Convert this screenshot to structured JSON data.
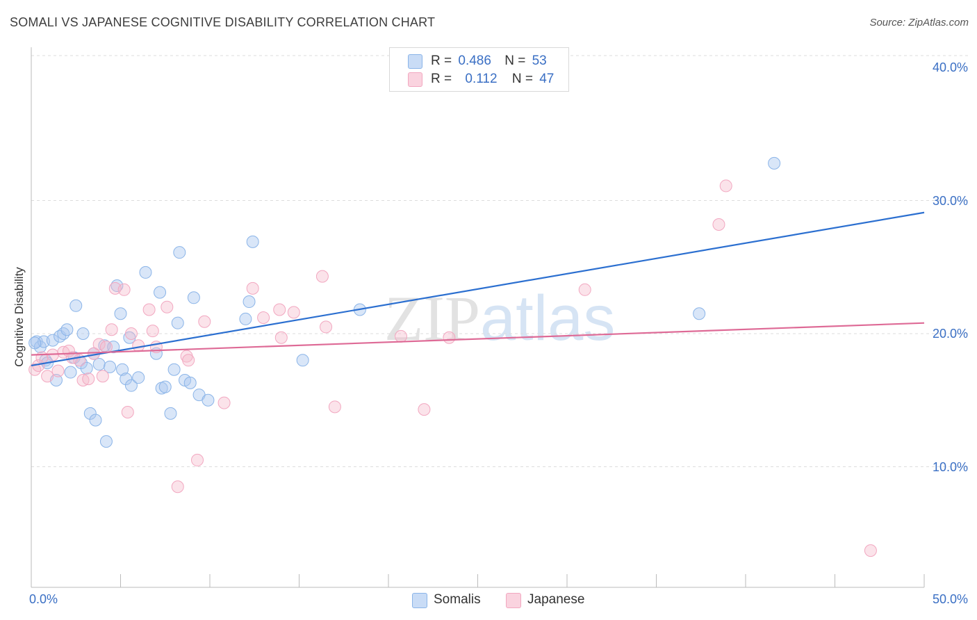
{
  "header": {
    "title": "SOMALI VS JAPANESE COGNITIVE DISABILITY CORRELATION CHART",
    "source": "Source: ZipAtlas.com"
  },
  "watermark": {
    "part1": "ZIP",
    "part2": "atlas"
  },
  "legend": {
    "rows": [
      {
        "r_label": "R =",
        "r_value": "0.486",
        "n_label": "N =",
        "n_value": "53",
        "color": "#aac8f0"
      },
      {
        "r_label": "R =",
        "r_value": "0.112",
        "n_label": "N =",
        "n_value": "47",
        "color": "#f6b8cb"
      }
    ]
  },
  "bottom_legend": [
    {
      "label": "Somalis",
      "color": "#aac8f0"
    },
    {
      "label": "Japanese",
      "color": "#f6b8cb"
    }
  ],
  "chart_data": {
    "type": "scatter",
    "title": "SOMALI VS JAPANESE COGNITIVE DISABILITY CORRELATION CHART",
    "xlabel": "",
    "ylabel": "Cognitive Disability",
    "xlim": [
      0,
      50
    ],
    "ylim": [
      0,
      40
    ],
    "x_tick_labels": [
      "0.0%",
      "50.0%"
    ],
    "y_ticks": [
      10,
      20,
      30,
      40
    ],
    "y_tick_labels": [
      "10.0%",
      "20.0%",
      "30.0%",
      "40.0%"
    ],
    "grid": "horizontal dashed",
    "legend_position": "top-center",
    "series": [
      {
        "name": "Somalis",
        "color": "#8ab4e8",
        "trend_color": "#2b6fd0",
        "trend": {
          "x": [
            0,
            50
          ],
          "y": [
            17.6,
            29.1
          ]
        },
        "points": [
          [
            0.3,
            19.4
          ],
          [
            0.5,
            19.0
          ],
          [
            0.7,
            19.4
          ],
          [
            0.8,
            18.0
          ],
          [
            0.9,
            17.8
          ],
          [
            1.2,
            19.5
          ],
          [
            1.4,
            16.5
          ],
          [
            1.6,
            19.8
          ],
          [
            1.8,
            20.0
          ],
          [
            2.0,
            20.3
          ],
          [
            2.2,
            17.1
          ],
          [
            2.4,
            18.2
          ],
          [
            2.5,
            22.1
          ],
          [
            2.8,
            17.8
          ],
          [
            2.9,
            20.0
          ],
          [
            3.1,
            17.4
          ],
          [
            3.3,
            14.0
          ],
          [
            3.5,
            18.5
          ],
          [
            3.6,
            13.5
          ],
          [
            3.8,
            17.7
          ],
          [
            4.1,
            19.1
          ],
          [
            4.2,
            11.9
          ],
          [
            4.4,
            17.5
          ],
          [
            4.6,
            19.0
          ],
          [
            4.8,
            23.6
          ],
          [
            5.0,
            21.5
          ],
          [
            5.1,
            17.3
          ],
          [
            5.3,
            16.6
          ],
          [
            5.5,
            19.7
          ],
          [
            5.6,
            16.1
          ],
          [
            6.0,
            16.7
          ],
          [
            6.4,
            24.6
          ],
          [
            7.0,
            18.5
          ],
          [
            7.2,
            23.1
          ],
          [
            7.3,
            15.9
          ],
          [
            7.5,
            16.0
          ],
          [
            7.8,
            14.0
          ],
          [
            8.0,
            17.3
          ],
          [
            8.2,
            20.8
          ],
          [
            8.3,
            26.1
          ],
          [
            8.6,
            16.5
          ],
          [
            8.9,
            16.3
          ],
          [
            9.1,
            22.7
          ],
          [
            9.4,
            15.4
          ],
          [
            9.9,
            15.0
          ],
          [
            12.0,
            21.1
          ],
          [
            12.2,
            22.4
          ],
          [
            12.4,
            26.9
          ],
          [
            15.2,
            18.0
          ],
          [
            18.4,
            21.8
          ],
          [
            37.4,
            21.5
          ],
          [
            41.6,
            32.8
          ],
          [
            0.2,
            19.3
          ]
        ]
      },
      {
        "name": "Japanese",
        "color": "#f2a7c0",
        "trend_color": "#de6a96",
        "trend": {
          "x": [
            0,
            50
          ],
          "y": [
            18.4,
            20.8
          ]
        },
        "points": [
          [
            0.2,
            17.3
          ],
          [
            0.4,
            17.6
          ],
          [
            0.6,
            18.2
          ],
          [
            0.9,
            16.8
          ],
          [
            1.2,
            18.4
          ],
          [
            1.5,
            17.2
          ],
          [
            1.8,
            18.6
          ],
          [
            2.1,
            18.7
          ],
          [
            2.3,
            18.2
          ],
          [
            2.7,
            18.0
          ],
          [
            2.9,
            16.5
          ],
          [
            3.2,
            16.6
          ],
          [
            3.5,
            18.5
          ],
          [
            3.8,
            19.2
          ],
          [
            4.0,
            16.8
          ],
          [
            4.2,
            19.0
          ],
          [
            4.5,
            20.3
          ],
          [
            4.7,
            23.4
          ],
          [
            5.2,
            23.3
          ],
          [
            5.4,
            14.1
          ],
          [
            5.6,
            20.0
          ],
          [
            6.0,
            19.1
          ],
          [
            6.6,
            21.8
          ],
          [
            6.8,
            20.2
          ],
          [
            7.0,
            19.0
          ],
          [
            7.6,
            22.0
          ],
          [
            8.2,
            8.5
          ],
          [
            8.7,
            18.3
          ],
          [
            8.8,
            18.0
          ],
          [
            9.3,
            10.5
          ],
          [
            9.7,
            20.9
          ],
          [
            10.8,
            14.8
          ],
          [
            12.4,
            23.4
          ],
          [
            13.0,
            21.2
          ],
          [
            13.9,
            21.8
          ],
          [
            14.0,
            19.7
          ],
          [
            14.7,
            21.6
          ],
          [
            16.3,
            24.3
          ],
          [
            16.5,
            20.5
          ],
          [
            17.0,
            14.5
          ],
          [
            20.7,
            19.8
          ],
          [
            22.0,
            14.3
          ],
          [
            23.4,
            19.7
          ],
          [
            31.0,
            23.3
          ],
          [
            38.5,
            28.2
          ],
          [
            38.9,
            31.1
          ],
          [
            47.0,
            3.7
          ]
        ]
      }
    ]
  }
}
